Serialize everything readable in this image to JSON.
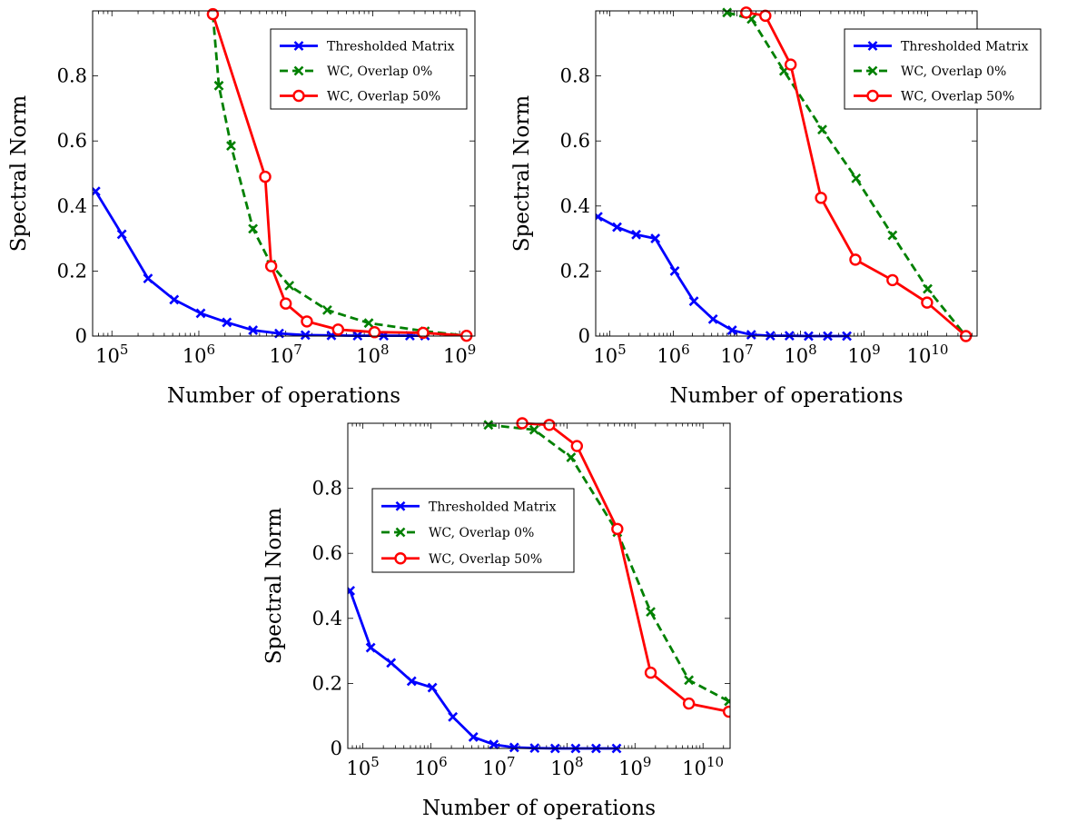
{
  "chart_data": [
    {
      "type": "line",
      "xscale": "log",
      "xlabel": "Number of operations",
      "ylabel": "Spectral Norm",
      "xlim": [
        60000,
        1500000000
      ],
      "ylim": [
        0,
        1
      ],
      "xticks": [
        {
          "value": 100000,
          "base": "10",
          "exp": "5"
        },
        {
          "value": 1000000,
          "base": "10",
          "exp": "6"
        },
        {
          "value": 10000000,
          "base": "10",
          "exp": "7"
        },
        {
          "value": 100000000,
          "base": "10",
          "exp": "8"
        },
        {
          "value": 1000000000,
          "base": "10",
          "exp": "9"
        }
      ],
      "yticks": [
        {
          "value": 0,
          "label": "0"
        },
        {
          "value": 0.2,
          "label": "0.2"
        },
        {
          "value": 0.4,
          "label": "0.4"
        },
        {
          "value": 0.6,
          "label": "0.6"
        },
        {
          "value": 0.8,
          "label": "0.8"
        }
      ],
      "legend_position": "top-right",
      "series": [
        {
          "name": "Thresholded Matrix",
          "color": "#0000ff",
          "dash": "solid",
          "marker": "x",
          "x": [
            65000,
            130000,
            260000,
            520000,
            1050000,
            2100000,
            4200000,
            8400000,
            16800000,
            33500000,
            67000000,
            134000000,
            268000000,
            400000000
          ],
          "y": [
            0.445,
            0.313,
            0.177,
            0.112,
            0.07,
            0.042,
            0.018,
            0.008,
            0.003,
            0.002,
            0.001,
            0.001,
            0.001,
            0.001
          ]
        },
        {
          "name": "WC, Overlap 0%",
          "color": "#008000",
          "dash": "dashed",
          "marker": "x",
          "x": [
            1450000,
            1700000,
            2350000,
            4200000,
            6800000,
            11000000,
            30000000,
            90000000,
            400000000,
            1200000000
          ],
          "y": [
            0.99,
            0.77,
            0.585,
            0.33,
            0.22,
            0.155,
            0.08,
            0.04,
            0.015,
            0.001
          ]
        },
        {
          "name": "WC, Overlap 50%",
          "color": "#ff0000",
          "dash": "solid",
          "marker": "o",
          "x": [
            1450000,
            5800000,
            6800000,
            10000000,
            17500000,
            40000000,
            105000000,
            380000000,
            1200000000
          ],
          "y": [
            0.99,
            0.49,
            0.215,
            0.1,
            0.045,
            0.02,
            0.012,
            0.01,
            0.001
          ]
        }
      ]
    },
    {
      "type": "line",
      "xscale": "log",
      "xlabel": "Number of operations",
      "ylabel": "Spectral Norm",
      "xlim": [
        60000,
        60000000000
      ],
      "ylim": [
        0,
        1
      ],
      "xticks": [
        {
          "value": 100000,
          "base": "10",
          "exp": "5"
        },
        {
          "value": 1000000,
          "base": "10",
          "exp": "6"
        },
        {
          "value": 10000000,
          "base": "10",
          "exp": "7"
        },
        {
          "value": 100000000,
          "base": "10",
          "exp": "8"
        },
        {
          "value": 1000000000,
          "base": "10",
          "exp": "9"
        },
        {
          "value": 10000000000,
          "base": "10",
          "exp": "10"
        }
      ],
      "yticks": [
        {
          "value": 0,
          "label": "0"
        },
        {
          "value": 0.2,
          "label": "0.2"
        },
        {
          "value": 0.4,
          "label": "0.4"
        },
        {
          "value": 0.6,
          "label": "0.6"
        },
        {
          "value": 0.8,
          "label": "0.8"
        }
      ],
      "legend_position": "top-right",
      "series": [
        {
          "name": "Thresholded Matrix",
          "color": "#0000ff",
          "dash": "solid",
          "marker": "x",
          "x": [
            65000,
            130000,
            260000,
            520000,
            1050000,
            2100000,
            4200000,
            8400000,
            16800000,
            33500000,
            67000000,
            134000000,
            268000000,
            536000000
          ],
          "y": [
            0.367,
            0.335,
            0.312,
            0.3,
            0.2,
            0.107,
            0.052,
            0.018,
            0.004,
            0.001,
            0.001,
            0.0,
            0.0,
            0.0
          ]
        },
        {
          "name": "WC, Overlap 0%",
          "color": "#008000",
          "dash": "dashed",
          "marker": "x",
          "x": [
            7000000,
            17000000,
            55000000,
            220000000,
            750000000,
            2800000000,
            10000000000,
            40000000000
          ],
          "y": [
            0.995,
            0.975,
            0.815,
            0.635,
            0.485,
            0.31,
            0.145,
            0.0
          ]
        },
        {
          "name": "WC, Overlap 50%",
          "color": "#ff0000",
          "dash": "solid",
          "marker": "o",
          "x": [
            14000000,
            28000000,
            70000000,
            210000000,
            730000000,
            2800000000,
            9800000000,
            40000000000
          ],
          "y": [
            0.995,
            0.985,
            0.835,
            0.425,
            0.235,
            0.172,
            0.103,
            0.0
          ]
        }
      ]
    },
    {
      "type": "line",
      "xscale": "log",
      "xlabel": "Number of operations",
      "ylabel": "Spectral Norm",
      "xlim": [
        60000,
        25000000000
      ],
      "ylim": [
        0,
        1
      ],
      "xticks": [
        {
          "value": 100000,
          "base": "10",
          "exp": "5"
        },
        {
          "value": 1000000,
          "base": "10",
          "exp": "6"
        },
        {
          "value": 10000000,
          "base": "10",
          "exp": "7"
        },
        {
          "value": 100000000,
          "base": "10",
          "exp": "8"
        },
        {
          "value": 1000000000,
          "base": "10",
          "exp": "9"
        },
        {
          "value": 10000000000,
          "base": "10",
          "exp": "10"
        }
      ],
      "yticks": [
        {
          "value": 0,
          "label": "0"
        },
        {
          "value": 0.2,
          "label": "0.2"
        },
        {
          "value": 0.4,
          "label": "0.4"
        },
        {
          "value": 0.6,
          "label": "0.6"
        },
        {
          "value": 0.8,
          "label": "0.8"
        }
      ],
      "legend_position": "middle-left",
      "series": [
        {
          "name": "Thresholded Matrix",
          "color": "#0000ff",
          "dash": "solid",
          "marker": "x",
          "x": [
            65000,
            130000,
            260000,
            520000,
            1050000,
            2100000,
            4200000,
            8400000,
            16800000,
            33500000,
            67000000,
            134000000,
            268000000,
            536000000
          ],
          "y": [
            0.485,
            0.31,
            0.263,
            0.207,
            0.187,
            0.097,
            0.035,
            0.012,
            0.003,
            0.001,
            0.0,
            0.0,
            0.0,
            0.0
          ]
        },
        {
          "name": "WC, Overlap 0%",
          "color": "#008000",
          "dash": "dashed",
          "marker": "x",
          "x": [
            7000000,
            33000000,
            115000000,
            550000000,
            1700000000,
            6200000000,
            24000000000
          ],
          "y": [
            0.995,
            0.98,
            0.895,
            0.665,
            0.42,
            0.21,
            0.145
          ]
        },
        {
          "name": "WC, Overlap 50%",
          "color": "#ff0000",
          "dash": "solid",
          "marker": "o",
          "x": [
            22000000,
            55000000,
            140000000,
            550000000,
            1700000000,
            6200000000,
            24000000000
          ],
          "y": [
            1.0,
            0.995,
            0.93,
            0.675,
            0.233,
            0.138,
            0.113
          ]
        }
      ]
    }
  ]
}
